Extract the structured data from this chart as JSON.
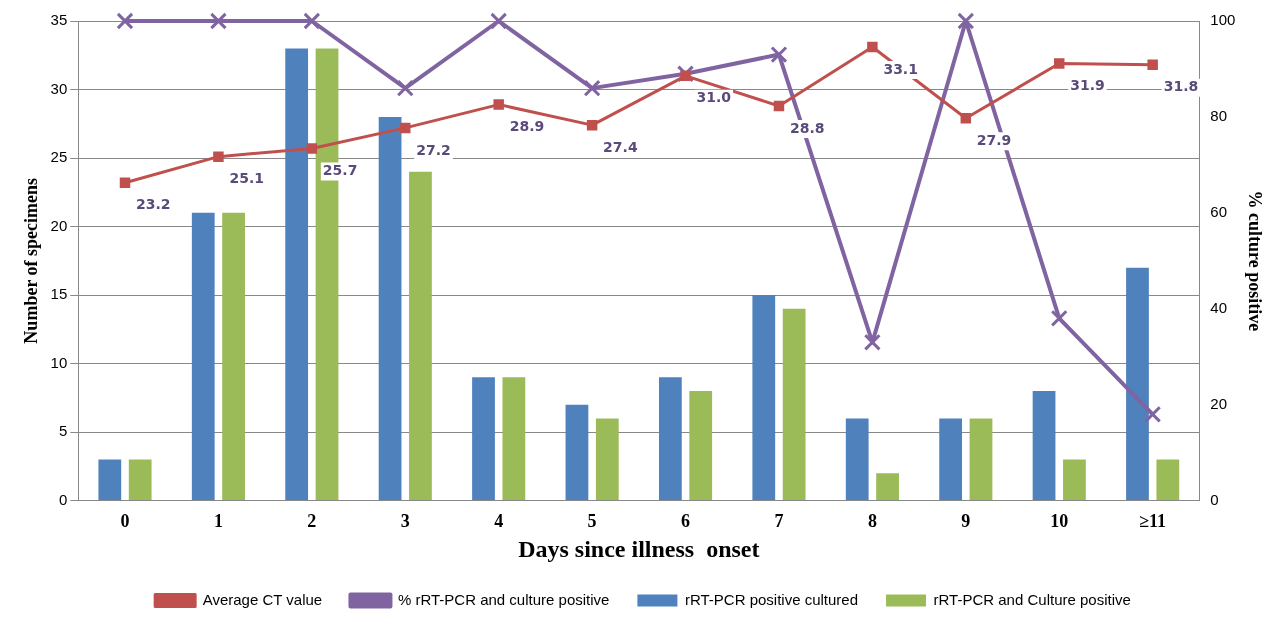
{
  "chart_data": {
    "type": "bar",
    "xlabel": "Days since illness  onset",
    "ylabel": "Number of specimens",
    "y2label": "% culture positive",
    "categories": [
      "0",
      "1",
      "2",
      "3",
      "4",
      "5",
      "6",
      "7",
      "8",
      "9",
      "10",
      "≥11"
    ],
    "series": [
      {
        "name": "rRT-PCR positive cultured",
        "color": "#4f81bd",
        "values": [
          3,
          21,
          33,
          28,
          9,
          7,
          9,
          15,
          6,
          6,
          8,
          17
        ]
      },
      {
        "name": "rRT-PCR and Culture positive",
        "color": "#9bbb59",
        "values": [
          3,
          21,
          33,
          24,
          9,
          6,
          8,
          14,
          2,
          6,
          3,
          3
        ]
      },
      {
        "name": "Average CT value",
        "type": "line",
        "marker": "square",
        "color": "#c0504d",
        "values": [
          23.2,
          25.1,
          25.7,
          27.2,
          28.9,
          27.4,
          31.0,
          28.8,
          33.1,
          27.9,
          31.9,
          31.8
        ],
        "value_labels": [
          "23.2",
          "25.1",
          "25.7",
          "27.2",
          "28.9",
          "27.4",
          "31.0",
          "28.8",
          "33.1",
          "27.9",
          "31.9",
          "31.8"
        ]
      },
      {
        "name": "% rRT-PCR and culture positive",
        "type": "line",
        "marker": "cross",
        "axis": "y2",
        "color": "#8064a2",
        "values": [
          100,
          100,
          100,
          86,
          100,
          86,
          89,
          93,
          33,
          100,
          38,
          18
        ]
      }
    ],
    "ylim": [
      0,
      35
    ],
    "yticks": [
      0,
      5,
      10,
      15,
      20,
      25,
      30,
      35
    ],
    "y2lim": [
      0,
      100
    ],
    "y2ticks": [
      0,
      20,
      40,
      60,
      80,
      100
    ],
    "grid": "y",
    "legend": "bottom"
  }
}
